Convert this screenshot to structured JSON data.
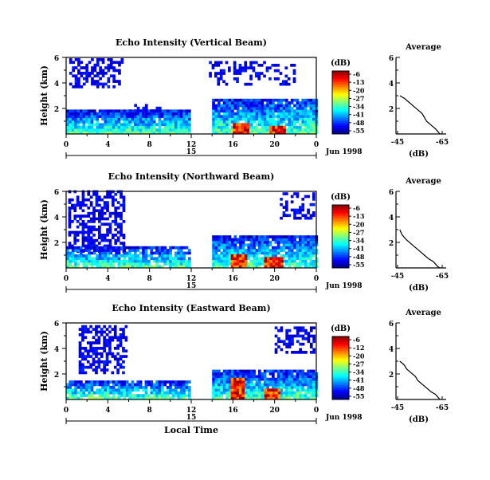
{
  "chart_data": [
    {
      "type": "heatmap",
      "title": "Echo Intensity (Vertical Beam)",
      "xlabel": "",
      "ylabel": "Height (km)",
      "xlim": [
        0,
        24
      ],
      "ylim": [
        0,
        6
      ],
      "x_ticks": [
        "0",
        "4",
        "8",
        "12",
        "16",
        "20",
        "0"
      ],
      "y_ticks": [
        "6",
        "4",
        "2"
      ],
      "date_labels": [
        "15",
        "Jun 1998"
      ],
      "colorbar": {
        "unit": "(dB)",
        "ticks": [
          "-6",
          "-13",
          "-20",
          "-27",
          "-34",
          "-41",
          "-48",
          "-55"
        ]
      },
      "average_profile": {
        "title": "Average",
        "xlabel": "(dB)",
        "x_ticks": [
          "-45",
          "-65"
        ],
        "y_ticks": [
          "6",
          "4",
          "2"
        ],
        "height_km": [
          3.0,
          2.8,
          2.5,
          2.2,
          1.9,
          1.6,
          1.3,
          1.0,
          0.7,
          0.4,
          0.2,
          0.0
        ],
        "db": [
          -46,
          -48,
          -50,
          -52,
          -54,
          -56,
          -57,
          -58,
          -60,
          -62,
          -63,
          -64
        ]
      },
      "echo_regions": [
        {
          "t": [
            0.3,
            5.3
          ],
          "h": [
            3.6,
            5.8
          ],
          "density": 0.55,
          "level": "low"
        },
        {
          "t": [
            13.7,
            21.8
          ],
          "h": [
            3.8,
            5.7
          ],
          "density": 0.35,
          "level": "low"
        },
        {
          "t": [
            0,
            11.8
          ],
          "h": [
            0,
            1.7
          ],
          "density": 0.95,
          "level": "mid"
        },
        {
          "t": [
            14.0,
            24
          ],
          "h": [
            0,
            2.6
          ],
          "density": 0.92,
          "level": "mid"
        },
        {
          "t": [
            6.0,
            9.0
          ],
          "h": [
            1.5,
            2.2
          ],
          "density": 0.4,
          "level": "low"
        },
        {
          "t": [
            16.0,
            17.3
          ],
          "h": [
            0,
            0.8
          ],
          "density": 1.0,
          "level": "high"
        },
        {
          "t": [
            19.5,
            21.0
          ],
          "h": [
            0,
            0.6
          ],
          "density": 1.0,
          "level": "high"
        }
      ]
    },
    {
      "type": "heatmap",
      "title": "Echo Intensity (Northward Beam)",
      "xlabel": "",
      "ylabel": "Height (km)",
      "xlim": [
        0,
        24
      ],
      "ylim": [
        0,
        6
      ],
      "x_ticks": [
        "0",
        "4",
        "8",
        "12",
        "16",
        "20",
        "0"
      ],
      "y_ticks": [
        "6",
        "4",
        "2"
      ],
      "date_labels": [
        "15",
        "Jun 1998"
      ],
      "colorbar": {
        "unit": "(dB)",
        "ticks": [
          "-6",
          "-13",
          "-20",
          "-27",
          "-34",
          "-41",
          "-48",
          "-55"
        ]
      },
      "average_profile": {
        "title": "Average",
        "xlabel": "(dB)",
        "x_ticks": [
          "-45",
          "-65"
        ],
        "y_ticks": [
          "6",
          "4",
          "2"
        ],
        "height_km": [
          3.0,
          2.6,
          2.2,
          1.9,
          1.6,
          1.3,
          1.0,
          0.7,
          0.5,
          0.3,
          0.1,
          0.0
        ],
        "db": [
          -46,
          -47,
          -49,
          -51,
          -53,
          -55,
          -57,
          -59,
          -61,
          -62,
          -63,
          -64
        ]
      },
      "echo_regions": [
        {
          "t": [
            0.2,
            5.5
          ],
          "h": [
            1.2,
            5.9
          ],
          "density": 0.55,
          "level": "low"
        },
        {
          "t": [
            20.5,
            23.8
          ],
          "h": [
            3.8,
            5.9
          ],
          "density": 0.4,
          "level": "low"
        },
        {
          "t": [
            0,
            11.8
          ],
          "h": [
            0,
            1.5
          ],
          "density": 0.85,
          "level": "mid"
        },
        {
          "t": [
            14.0,
            24
          ],
          "h": [
            0,
            2.4
          ],
          "density": 0.92,
          "level": "mid"
        },
        {
          "t": [
            15.8,
            17.3
          ],
          "h": [
            0,
            0.9
          ],
          "density": 1.0,
          "level": "high"
        },
        {
          "t": [
            19.0,
            20.8
          ],
          "h": [
            0,
            0.8
          ],
          "density": 1.0,
          "level": "high"
        }
      ]
    },
    {
      "type": "heatmap",
      "title": "Echo Intensity (Eastward Beam)",
      "xlabel": "Local Time",
      "ylabel": "Height (km)",
      "xlim": [
        0,
        24
      ],
      "ylim": [
        0,
        6
      ],
      "x_ticks": [
        "0",
        "4",
        "8",
        "12",
        "16",
        "20",
        "0"
      ],
      "y_ticks": [
        "6",
        "4",
        "2"
      ],
      "date_labels": [
        "15",
        "Jun 1998"
      ],
      "colorbar": {
        "unit": "(dB)",
        "ticks": [
          "-6",
          "-12",
          "-20",
          "-27",
          "-34",
          "-41",
          "-48",
          "-55"
        ]
      },
      "average_profile": {
        "title": "Average",
        "xlabel": "(dB)",
        "x_ticks": [
          "-45",
          "-65"
        ],
        "y_ticks": [
          "6",
          "4",
          "2"
        ],
        "height_km": [
          3.0,
          2.7,
          2.4,
          2.1,
          1.8,
          1.5,
          1.2,
          0.9,
          0.6,
          0.4,
          0.2,
          0.0
        ],
        "db": [
          -46,
          -48,
          -49,
          -51,
          -53,
          -54,
          -56,
          -58,
          -60,
          -62,
          -63,
          -64
        ]
      },
      "echo_regions": [
        {
          "t": [
            1.2,
            5.8
          ],
          "h": [
            2.0,
            5.7
          ],
          "density": 0.5,
          "level": "low"
        },
        {
          "t": [
            20.0,
            23.8
          ],
          "h": [
            3.6,
            5.7
          ],
          "density": 0.5,
          "level": "low"
        },
        {
          "t": [
            0,
            11.8
          ],
          "h": [
            0,
            1.4
          ],
          "density": 0.85,
          "level": "mid"
        },
        {
          "t": [
            14.0,
            24
          ],
          "h": [
            0,
            2.2
          ],
          "density": 0.92,
          "level": "mid"
        },
        {
          "t": [
            15.8,
            17.0
          ],
          "h": [
            0,
            1.5
          ],
          "density": 1.0,
          "level": "high"
        },
        {
          "t": [
            19.0,
            20.5
          ],
          "h": [
            0,
            0.7
          ],
          "density": 1.0,
          "level": "high"
        }
      ]
    }
  ]
}
